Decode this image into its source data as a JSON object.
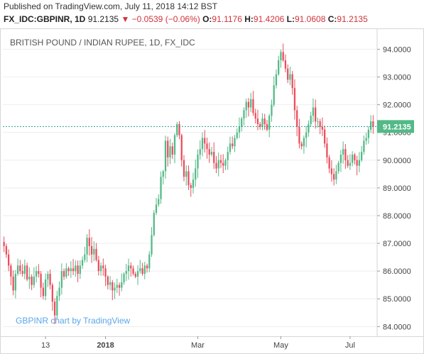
{
  "header": {
    "published": "Published on TradingView.com, July 11, 2018 14:12 BST",
    "symbol": "FX_IDC:GBPINR, 1D",
    "last": "91.2135",
    "change": "▼ −0.0539 (−0.06%)",
    "o_label": "O:",
    "o_value": "91.1176",
    "h_label": "H:",
    "h_value": "91.4206",
    "l_label": "L:",
    "l_value": "91.0608",
    "c_label": "C:",
    "c_value": "91.2135"
  },
  "chart_data": {
    "type": "candlestick",
    "title": "BRITISH POUND / INDIAN RUPEE, 1D, FX_IDC",
    "watermark": "GBPINR chart by TradingView",
    "x_tick_labels": [
      "13",
      "2018",
      "Mar",
      "May",
      "Jul"
    ],
    "y_tick_labels": [
      "84.0000",
      "85.0000",
      "86.0000",
      "87.0000",
      "88.0000",
      "89.0000",
      "90.0000",
      "91.0000",
      "92.0000",
      "93.0000",
      "94.0000"
    ],
    "ylim": [
      83.65,
      94.65
    ],
    "last_price": 91.2135,
    "last_price_label": "91.2135",
    "colors": {
      "up": "#53b987",
      "down": "#eb4d5c",
      "last_line": "#2a9d8f",
      "grid": "#eeeeee"
    },
    "grid": true,
    "closes": [
      86.9,
      86.6,
      86.2,
      85.8,
      85.3,
      85.9,
      86.2,
      86.0,
      85.9,
      86.2,
      85.7,
      85.8,
      85.5,
      85.8,
      86.0,
      85.9,
      85.4,
      85.1,
      85.7,
      85.9,
      85.5,
      84.9,
      84.4,
      85.1,
      85.4,
      86.0,
      85.8,
      86.1,
      86.0,
      86.1,
      86.0,
      86.2,
      85.9,
      86.2,
      86.4,
      86.6,
      87.2,
      86.9,
      86.6,
      86.8,
      86.4,
      86.0,
      86.2,
      86.1,
      85.8,
      85.5,
      85.6,
      85.3,
      85.4,
      85.5,
      85.4,
      85.6,
      85.9,
      86.0,
      86.2,
      86.1,
      85.9,
      85.8,
      86.0,
      86.1,
      85.9,
      86.2,
      86.1,
      86.6,
      87.3,
      88.1,
      88.4,
      88.6,
      89.4,
      89.6,
      90.7,
      90.1,
      90.5,
      90.2,
      90.9,
      91.3,
      90.9,
      90.0,
      89.4,
      89.6,
      89.1,
      89.0,
      89.3,
      89.7,
      90.2,
      90.4,
      90.8,
      90.6,
      90.4,
      90.2,
      90.3,
      89.9,
      89.7,
      90.0,
      89.9,
      89.8,
      90.0,
      90.3,
      90.6,
      90.5,
      90.8,
      91.0,
      91.2,
      91.5,
      91.8,
      92.1,
      91.9,
      92.2,
      91.7,
      91.5,
      91.3,
      91.2,
      91.5,
      91.3,
      91.1,
      91.6,
      92.0,
      92.7,
      93.1,
      93.6,
      93.9,
      93.6,
      93.3,
      92.9,
      93.1,
      92.6,
      91.8,
      91.2,
      90.6,
      90.5,
      90.8,
      91.0,
      91.3,
      91.6,
      91.9,
      91.4,
      91.4,
      91.2,
      91.1,
      90.6,
      90.1,
      89.7,
      89.5,
      89.3,
      89.6,
      89.9,
      90.2,
      90.4,
      90.0,
      89.8,
      89.9,
      90.2,
      90.0,
      89.8,
      90.0,
      90.3,
      90.7,
      90.8,
      91.1,
      91.4,
      91.2
    ]
  }
}
